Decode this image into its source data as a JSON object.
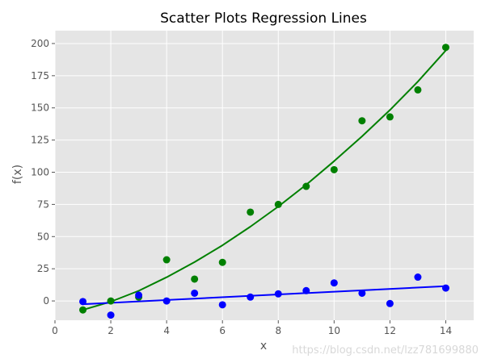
{
  "chart_data": {
    "type": "scatter",
    "title": "Scatter Plots Regression Lines",
    "xlabel": "x",
    "ylabel": "f(x)",
    "xlim": [
      0,
      15
    ],
    "ylim": [
      -15,
      210
    ],
    "xticks": [
      0,
      2,
      4,
      6,
      8,
      10,
      12,
      14
    ],
    "yticks": [
      0,
      25,
      50,
      75,
      100,
      125,
      150,
      175,
      200
    ],
    "grid": true,
    "series": [
      {
        "color": "#008000",
        "x": [
          1,
          2,
          3,
          4,
          5,
          6,
          7,
          8,
          9,
          10,
          11,
          12,
          13,
          14
        ],
        "y": [
          -7,
          0,
          3,
          32,
          17,
          30,
          69,
          75,
          89,
          102,
          140,
          143,
          164,
          197
        ],
        "fit": {
          "kind": "quadratic",
          "x": [
            1,
            2,
            3,
            4,
            5,
            6,
            7,
            8,
            9,
            10,
            11,
            12,
            13,
            14
          ],
          "y": [
            -7,
            -0.6,
            7.9,
            18.4,
            30.2,
            43.2,
            57.7,
            73.4,
            90.3,
            108.6,
            127.9,
            148.3,
            170.4,
            194.6
          ]
        }
      },
      {
        "color": "#0000ff",
        "x": [
          1,
          2,
          3,
          4,
          5,
          6,
          7,
          8,
          9,
          10,
          11,
          12,
          13,
          14
        ],
        "y": [
          -0.5,
          -11,
          4.5,
          0,
          6,
          -3,
          3,
          5.5,
          8,
          14,
          6,
          -2,
          18.5,
          10
        ],
        "fit": {
          "kind": "linear",
          "x": [
            1,
            14
          ],
          "y": [
            -2.5,
            11.5
          ]
        }
      }
    ]
  },
  "watermark": "https://blog.csdn.net/lzz781699880"
}
